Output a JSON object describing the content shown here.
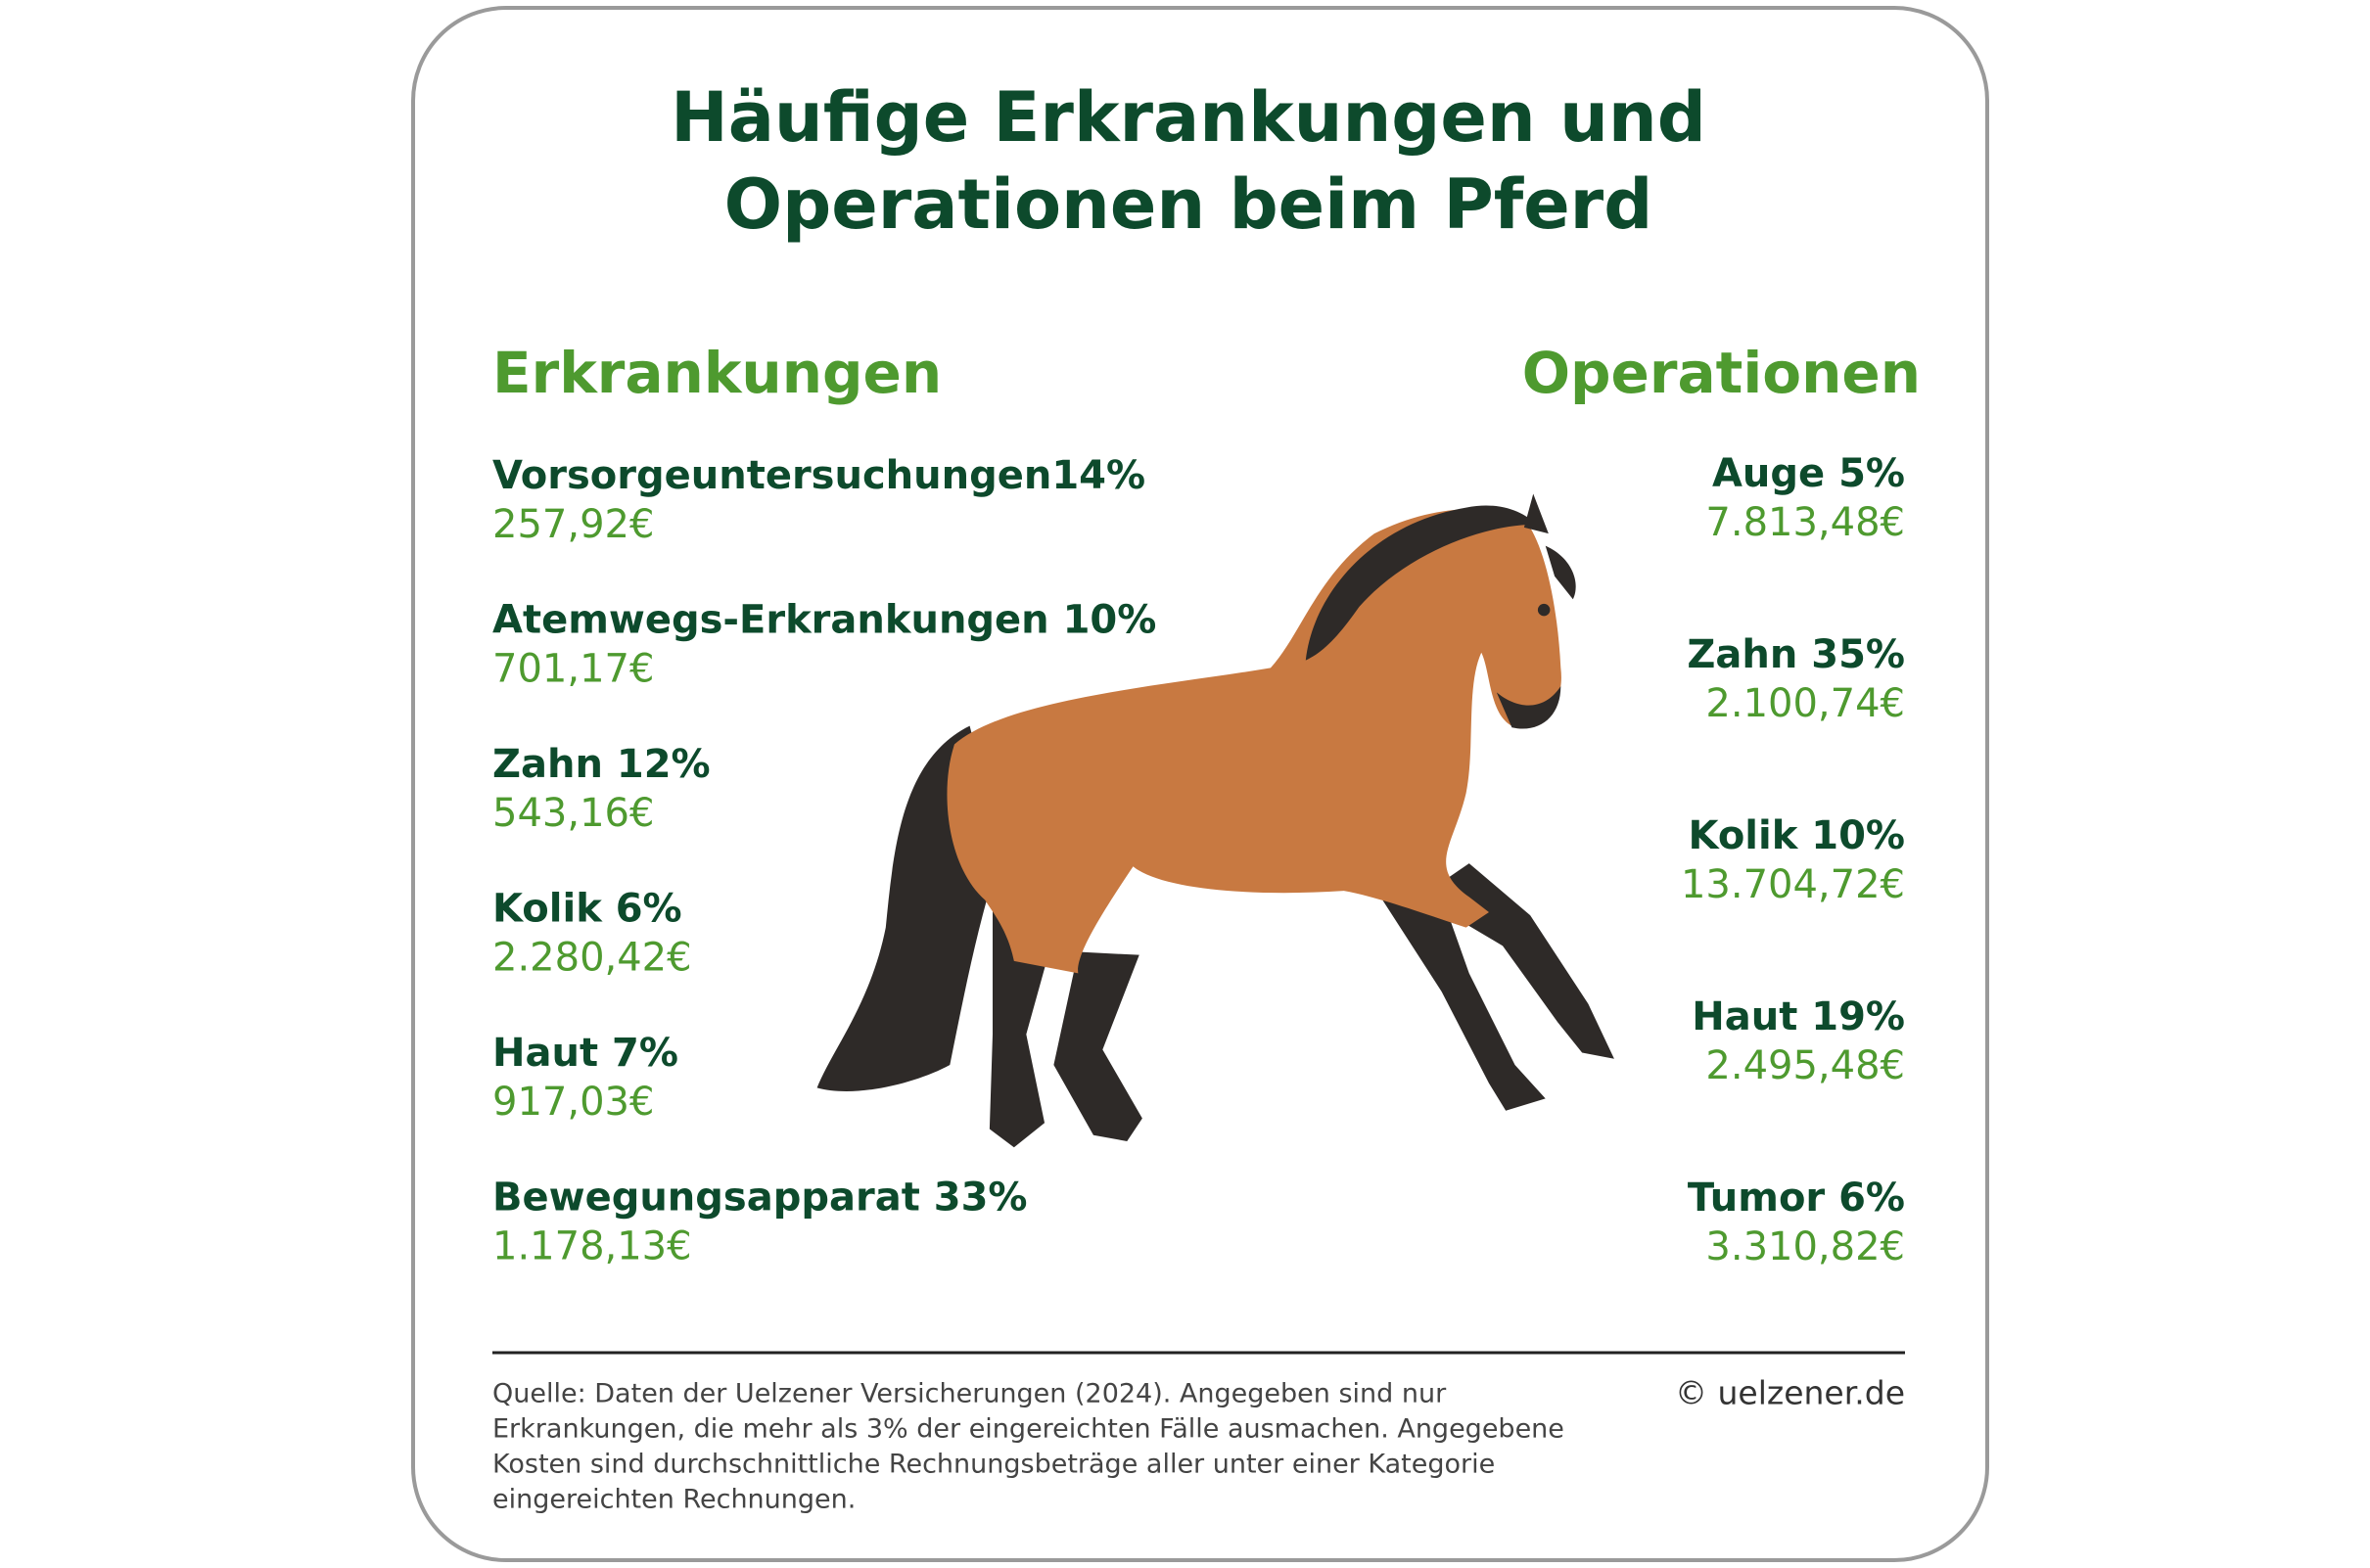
{
  "title": [
    "Häufige Erkrankungen und",
    "Operationen beim Pferd"
  ],
  "diseases": {
    "heading": "Erkrankungen",
    "items": [
      {
        "label": "Vorsorgeuntersuchungen14%",
        "cost": "257,92€"
      },
      {
        "label": "Atemwegs-Erkrankungen 10%",
        "cost": "701,17€"
      },
      {
        "label": "Zahn 12%",
        "cost": "543,16€"
      },
      {
        "label": "Kolik 6%",
        "cost": "2.280,42€"
      },
      {
        "label": "Haut 7%",
        "cost": "917,03€"
      },
      {
        "label": "Bewegungsapparat 33%",
        "cost": "1.178,13€"
      }
    ]
  },
  "operations": {
    "heading": "Operationen",
    "items": [
      {
        "label": "Auge 5%",
        "cost": "7.813,48€"
      },
      {
        "label": "Zahn 35%",
        "cost": "2.100,74€"
      },
      {
        "label": "Kolik 10%",
        "cost": "13.704,72€"
      },
      {
        "label": "Haut 19%",
        "cost": "2.495,48€"
      },
      {
        "label": "Tumor 6%",
        "cost": "3.310,82€"
      }
    ]
  },
  "footer": {
    "source": [
      "Quelle: Daten der Uelzener Versicherungen (2024). Angegeben sind nur",
      "Erkrankungen, die mehr als 3% der eingereichten Fälle ausmachen. Angegebene",
      "Kosten sind durchschnittliche Rechnungsbeträge aller unter einer Kategorie",
      "eingereichten Rechnungen."
    ],
    "copyright": "© uelzener.de"
  }
}
